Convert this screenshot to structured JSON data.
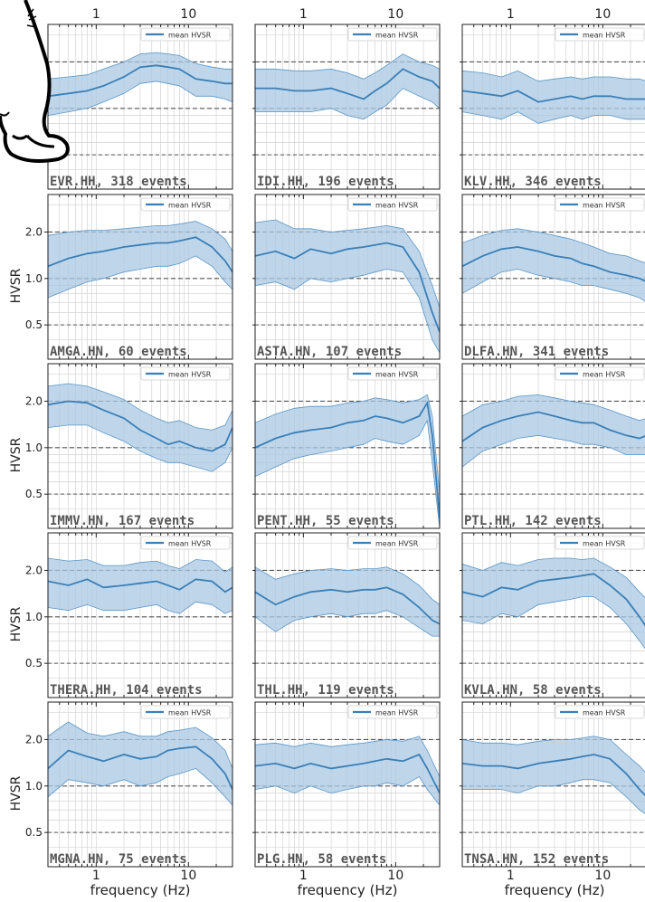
{
  "chart_data": {
    "type": "line",
    "xscale": "log",
    "xlim": [
      0.3,
      30
    ],
    "ylim": [
      0.3,
      3.5
    ],
    "x_ticks": [
      "1",
      "10"
    ],
    "y_ticks": [
      "0.5",
      "1.0",
      "2.0"
    ],
    "xlabel": "frequency (Hz)",
    "ylabel": "HVSR",
    "legend_label": "mean HVSR",
    "legend_position": "top-right",
    "grid": true,
    "colors": {
      "line": "#3a7fb8",
      "band": "#a9c8e3",
      "band_edge": "#5a95c6",
      "ref": "#555555"
    },
    "panels": [
      {
        "label": "EVR.HH, 318 events",
        "row": 0,
        "col": 0,
        "x": [
          0.3,
          0.5,
          0.8,
          1.2,
          2,
          3,
          4.5,
          6,
          8,
          12,
          18,
          25,
          30
        ],
        "mean": [
          1.2,
          1.25,
          1.3,
          1.4,
          1.6,
          1.85,
          1.9,
          1.85,
          1.8,
          1.55,
          1.5,
          1.45,
          1.45
        ],
        "lower": [
          0.9,
          0.95,
          1.0,
          1.1,
          1.25,
          1.45,
          1.5,
          1.45,
          1.4,
          1.2,
          1.2,
          1.15,
          1.1
        ],
        "upper": [
          1.55,
          1.6,
          1.65,
          1.8,
          2.0,
          2.25,
          2.3,
          2.25,
          2.2,
          1.95,
          1.85,
          1.8,
          1.8
        ]
      },
      {
        "label": "IDI.HH, 196 events",
        "row": 0,
        "col": 1,
        "x": [
          0.3,
          0.5,
          0.8,
          1.2,
          2,
          3,
          4.5,
          6,
          8,
          12,
          18,
          25,
          30
        ],
        "mean": [
          1.35,
          1.35,
          1.3,
          1.3,
          1.35,
          1.25,
          1.15,
          1.3,
          1.45,
          1.8,
          1.6,
          1.5,
          1.35
        ],
        "lower": [
          0.95,
          0.95,
          0.95,
          0.95,
          1.0,
          0.9,
          0.85,
          0.95,
          1.05,
          1.35,
          1.2,
          1.1,
          1.0
        ],
        "upper": [
          1.8,
          1.8,
          1.75,
          1.75,
          1.8,
          1.7,
          1.55,
          1.7,
          1.9,
          2.25,
          2.0,
          1.9,
          1.8
        ]
      },
      {
        "label": "KLV.HH, 346 events",
        "row": 0,
        "col": 2,
        "x": [
          0.3,
          0.5,
          0.8,
          1.2,
          2,
          3,
          4.5,
          6,
          8,
          12,
          18,
          25,
          30
        ],
        "mean": [
          1.3,
          1.25,
          1.2,
          1.3,
          1.1,
          1.15,
          1.2,
          1.15,
          1.2,
          1.2,
          1.15,
          1.15,
          1.15
        ],
        "lower": [
          0.95,
          0.9,
          0.85,
          0.95,
          0.8,
          0.85,
          0.9,
          0.85,
          0.9,
          0.9,
          0.85,
          0.85,
          0.85
        ],
        "upper": [
          1.75,
          1.7,
          1.6,
          1.75,
          1.5,
          1.55,
          1.6,
          1.55,
          1.6,
          1.6,
          1.55,
          1.55,
          1.5
        ]
      },
      {
        "label": "AMGA.HN,  60 events",
        "row": 1,
        "col": 0,
        "x": [
          0.3,
          0.5,
          0.8,
          1.2,
          2,
          3,
          4.5,
          6,
          8,
          12,
          18,
          25,
          30
        ],
        "mean": [
          1.2,
          1.35,
          1.45,
          1.5,
          1.6,
          1.65,
          1.7,
          1.7,
          1.75,
          1.85,
          1.6,
          1.3,
          1.1
        ],
        "lower": [
          0.75,
          0.85,
          0.95,
          1.0,
          1.1,
          1.15,
          1.2,
          1.2,
          1.25,
          1.4,
          1.2,
          0.95,
          0.85
        ],
        "upper": [
          1.9,
          2.0,
          2.05,
          2.05,
          2.1,
          2.15,
          2.2,
          2.2,
          2.25,
          2.35,
          2.1,
          1.8,
          1.5
        ]
      },
      {
        "label": "ASTA.HN, 107 events",
        "row": 1,
        "col": 1,
        "x": [
          0.3,
          0.5,
          0.8,
          1.2,
          2,
          3,
          4.5,
          6,
          8,
          12,
          18,
          25,
          30
        ],
        "mean": [
          1.4,
          1.5,
          1.35,
          1.55,
          1.45,
          1.55,
          1.6,
          1.65,
          1.7,
          1.6,
          1.1,
          0.6,
          0.45
        ],
        "lower": [
          0.9,
          0.95,
          0.85,
          1.0,
          0.95,
          1.0,
          1.05,
          1.1,
          1.15,
          1.1,
          0.75,
          0.4,
          0.33
        ],
        "upper": [
          2.3,
          2.4,
          2.1,
          2.1,
          2.0,
          2.05,
          2.1,
          2.15,
          2.2,
          2.1,
          1.5,
          0.9,
          0.65
        ]
      },
      {
        "label": "DLFA.HN, 341 events",
        "row": 1,
        "col": 2,
        "x": [
          0.3,
          0.5,
          0.8,
          1.2,
          2,
          3,
          4.5,
          6,
          8,
          12,
          18,
          25,
          30
        ],
        "mean": [
          1.2,
          1.4,
          1.55,
          1.6,
          1.5,
          1.4,
          1.35,
          1.25,
          1.2,
          1.1,
          1.05,
          1.0,
          0.95
        ],
        "lower": [
          0.8,
          0.95,
          1.1,
          1.15,
          1.05,
          1.0,
          0.95,
          0.9,
          0.9,
          0.85,
          0.8,
          0.75,
          0.7
        ],
        "upper": [
          1.7,
          1.9,
          2.05,
          2.1,
          2.0,
          1.9,
          1.8,
          1.7,
          1.6,
          1.45,
          1.4,
          1.3,
          1.25
        ]
      },
      {
        "label": "IMMV.HN, 167 events",
        "row": 2,
        "col": 0,
        "x": [
          0.3,
          0.5,
          0.8,
          1.2,
          2,
          3,
          4.5,
          6,
          8,
          12,
          18,
          25,
          30
        ],
        "mean": [
          1.9,
          2.0,
          1.95,
          1.75,
          1.55,
          1.3,
          1.15,
          1.05,
          1.1,
          1.0,
          0.95,
          1.05,
          1.35
        ],
        "lower": [
          1.35,
          1.4,
          1.4,
          1.25,
          1.1,
          0.95,
          0.85,
          0.8,
          0.8,
          0.75,
          0.7,
          0.8,
          1.0
        ],
        "upper": [
          2.5,
          2.6,
          2.5,
          2.3,
          2.05,
          1.75,
          1.55,
          1.45,
          1.5,
          1.35,
          1.3,
          1.4,
          1.75
        ]
      },
      {
        "label": "PENT.HH,  55 events",
        "row": 2,
        "col": 1,
        "x": [
          0.3,
          0.5,
          0.8,
          1.2,
          2,
          3,
          4.5,
          6,
          8,
          12,
          18,
          22,
          25,
          30
        ],
        "mean": [
          1.0,
          1.15,
          1.25,
          1.3,
          1.35,
          1.45,
          1.5,
          1.6,
          1.55,
          1.45,
          1.6,
          1.95,
          1.2,
          0.35
        ],
        "lower": [
          0.65,
          0.75,
          0.85,
          0.9,
          0.95,
          1.0,
          1.05,
          1.15,
          1.1,
          1.05,
          1.2,
          1.5,
          0.8,
          0.3
        ],
        "upper": [
          1.45,
          1.65,
          1.8,
          1.85,
          1.85,
          1.95,
          2.0,
          2.1,
          2.05,
          1.95,
          2.05,
          2.2,
          1.6,
          0.5
        ]
      },
      {
        "label": "PTL.HH, 142 events",
        "row": 2,
        "col": 2,
        "x": [
          0.3,
          0.5,
          0.8,
          1.2,
          2,
          3,
          4.5,
          6,
          8,
          12,
          18,
          25,
          30
        ],
        "mean": [
          1.1,
          1.35,
          1.5,
          1.6,
          1.7,
          1.6,
          1.5,
          1.45,
          1.45,
          1.3,
          1.2,
          1.15,
          1.2
        ],
        "lower": [
          0.75,
          0.95,
          1.05,
          1.15,
          1.2,
          1.15,
          1.1,
          1.05,
          1.05,
          1.0,
          0.9,
          0.9,
          0.9
        ],
        "upper": [
          1.6,
          1.9,
          2.0,
          2.15,
          2.2,
          2.1,
          2.0,
          1.95,
          1.9,
          1.75,
          1.6,
          1.5,
          1.55
        ]
      },
      {
        "label": "THERA.HH, 104 events",
        "row": 3,
        "col": 0,
        "x": [
          0.3,
          0.5,
          0.8,
          1.2,
          2,
          3,
          4.5,
          6,
          8,
          12,
          18,
          25,
          30
        ],
        "mean": [
          1.7,
          1.6,
          1.75,
          1.55,
          1.6,
          1.65,
          1.7,
          1.6,
          1.5,
          1.75,
          1.7,
          1.45,
          1.55
        ],
        "lower": [
          1.15,
          1.1,
          1.2,
          1.1,
          1.1,
          1.15,
          1.2,
          1.1,
          1.05,
          1.25,
          1.2,
          1.05,
          1.1
        ],
        "upper": [
          2.4,
          2.3,
          2.35,
          2.15,
          2.15,
          2.25,
          2.3,
          2.15,
          2.05,
          2.35,
          2.3,
          1.95,
          2.1
        ]
      },
      {
        "label": "THL.HH, 119 events",
        "row": 3,
        "col": 1,
        "x": [
          0.3,
          0.5,
          0.8,
          1.2,
          2,
          3,
          4.5,
          6,
          8,
          12,
          18,
          25,
          30
        ],
        "mean": [
          1.45,
          1.2,
          1.35,
          1.45,
          1.5,
          1.45,
          1.5,
          1.5,
          1.55,
          1.4,
          1.15,
          0.95,
          0.9
        ],
        "lower": [
          1.0,
          0.8,
          0.95,
          1.0,
          1.05,
          1.0,
          1.05,
          1.05,
          1.1,
          1.0,
          0.85,
          0.75,
          0.75
        ],
        "upper": [
          2.1,
          1.75,
          1.9,
          2.0,
          2.05,
          2.0,
          2.05,
          2.05,
          2.1,
          1.9,
          1.6,
          1.3,
          1.2
        ]
      },
      {
        "label": "KVLA.HN,  58 events",
        "row": 3,
        "col": 2,
        "x": [
          0.3,
          0.5,
          0.8,
          1.2,
          2,
          3,
          4.5,
          6,
          8,
          12,
          18,
          25,
          30
        ],
        "mean": [
          1.45,
          1.35,
          1.55,
          1.5,
          1.7,
          1.75,
          1.8,
          1.85,
          1.9,
          1.6,
          1.3,
          1.0,
          0.85
        ],
        "lower": [
          0.95,
          0.9,
          1.05,
          1.0,
          1.2,
          1.25,
          1.3,
          1.35,
          1.35,
          1.15,
          0.9,
          0.7,
          0.6
        ],
        "upper": [
          2.2,
          2.0,
          2.25,
          2.15,
          2.35,
          2.4,
          2.4,
          2.35,
          2.4,
          2.1,
          1.8,
          1.45,
          1.3
        ]
      },
      {
        "label": "MGNA.HN,  75 events",
        "row": 4,
        "col": 0,
        "x": [
          0.3,
          0.5,
          0.8,
          1.2,
          2,
          3,
          4.5,
          6,
          8,
          12,
          18,
          25,
          30
        ],
        "mean": [
          1.3,
          1.7,
          1.55,
          1.45,
          1.6,
          1.5,
          1.55,
          1.7,
          1.75,
          1.8,
          1.5,
          1.2,
          0.95
        ],
        "lower": [
          0.85,
          1.1,
          1.05,
          1.0,
          1.1,
          1.0,
          1.05,
          1.15,
          1.2,
          1.3,
          1.05,
          0.85,
          0.75
        ],
        "upper": [
          2.1,
          2.6,
          2.2,
          2.1,
          2.25,
          2.1,
          2.1,
          2.25,
          2.3,
          2.4,
          2.05,
          1.7,
          1.3
        ]
      },
      {
        "label": "PLG.HN,  58 events",
        "row": 4,
        "col": 1,
        "x": [
          0.3,
          0.5,
          0.8,
          1.2,
          2,
          3,
          4.5,
          6,
          8,
          12,
          18,
          22,
          30
        ],
        "mean": [
          1.35,
          1.4,
          1.3,
          1.4,
          1.3,
          1.35,
          1.4,
          1.45,
          1.5,
          1.45,
          1.6,
          1.3,
          0.9
        ],
        "lower": [
          0.95,
          1.0,
          0.9,
          1.0,
          0.9,
          0.95,
          1.0,
          1.0,
          1.05,
          1.0,
          1.15,
          0.95,
          0.75
        ],
        "upper": [
          1.85,
          1.9,
          1.8,
          1.9,
          1.8,
          1.85,
          1.9,
          1.95,
          2.0,
          1.95,
          2.1,
          1.7,
          1.15
        ]
      },
      {
        "label": "TNSA.HN, 152 events",
        "row": 4,
        "col": 2,
        "x": [
          0.3,
          0.5,
          0.8,
          1.2,
          2,
          3,
          4.5,
          6,
          8,
          12,
          18,
          25,
          30
        ],
        "mean": [
          1.4,
          1.35,
          1.35,
          1.3,
          1.4,
          1.45,
          1.5,
          1.55,
          1.6,
          1.5,
          1.2,
          0.95,
          0.85
        ],
        "lower": [
          0.95,
          0.95,
          0.95,
          0.9,
          1.0,
          1.0,
          1.05,
          1.1,
          1.1,
          1.05,
          0.85,
          0.7,
          0.65
        ],
        "upper": [
          2.0,
          1.9,
          1.9,
          1.85,
          1.95,
          2.0,
          2.0,
          2.05,
          2.1,
          2.0,
          1.6,
          1.35,
          1.2
        ]
      }
    ]
  }
}
